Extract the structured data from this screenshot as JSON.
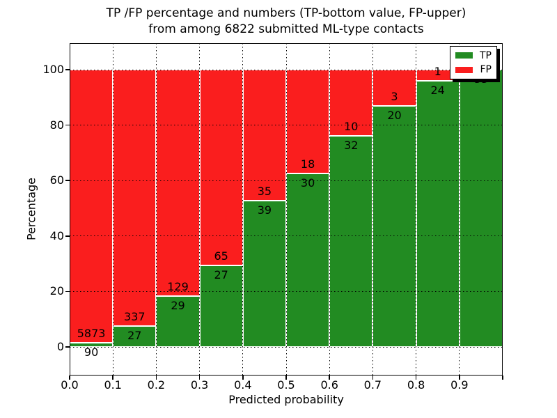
{
  "chart_data": {
    "type": "bar",
    "stacked": true,
    "normalized_to_percent": true,
    "title_line1": "TP /FP percentage and numbers (TP-bottom value, FP-upper)",
    "title_line2": "from among 6822 submitted ML-type contacts",
    "total_contacts": 6822,
    "xlabel": "Predicted probability",
    "ylabel": "Percentage",
    "x_tick_labels": [
      "0.0",
      "0.1",
      "0.2",
      "0.3",
      "0.4",
      "0.5",
      "0.6",
      "0.7",
      "0.8",
      "0.9"
    ],
    "y_tick_labels": [
      "0",
      "20",
      "40",
      "60",
      "80",
      "100"
    ],
    "y_ticks": [
      0,
      20,
      40,
      60,
      80,
      100
    ],
    "categories": [
      "0.0-0.1",
      "0.1-0.2",
      "0.2-0.3",
      "0.3-0.4",
      "0.4-0.5",
      "0.5-0.6",
      "0.6-0.7",
      "0.7-0.8",
      "0.8-0.9",
      "0.9-1.0"
    ],
    "series": [
      {
        "name": "TP",
        "color": "#228b22",
        "values": [
          90,
          27,
          29,
          27,
          39,
          30,
          32,
          20,
          24,
          33
        ]
      },
      {
        "name": "FP",
        "color": "#fa1e1e",
        "values": [
          5873,
          337,
          129,
          65,
          35,
          18,
          10,
          3,
          1,
          0
        ]
      }
    ],
    "bar_edge_color": "#ffffff",
    "grid": true,
    "grid_style": "dotted-black",
    "legend": {
      "position": "upper right",
      "entries": [
        {
          "label": "TP",
          "color": "#228b22"
        },
        {
          "label": "FP",
          "color": "#fa1e1e"
        }
      ]
    }
  }
}
